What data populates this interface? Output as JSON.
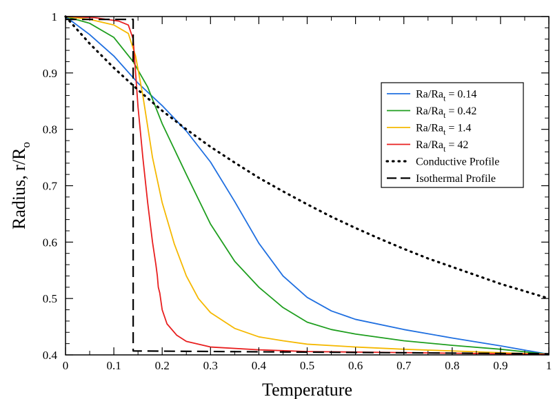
{
  "chart_data": {
    "type": "line",
    "xlabel": "Temperature",
    "ylabel": "Radius, r/R",
    "ylabel_sub": "o",
    "xlim": [
      0,
      1
    ],
    "ylim": [
      0.4,
      1
    ],
    "x_ticks": [
      "0",
      "0.1",
      "0.2",
      "0.3",
      "0.4",
      "0.5",
      "0.6",
      "0.7",
      "0.8",
      "0.9",
      "1"
    ],
    "y_ticks": [
      "0.4",
      "0.5",
      "0.6",
      "0.7",
      "0.8",
      "0.9",
      "1"
    ],
    "grid": false,
    "legend_position": "top-right",
    "series": [
      {
        "name": "Ra/Ra",
        "name_sub": "t",
        "name_suffix": " = 0.14",
        "color": "#1f6fe0",
        "dash": "solid",
        "points": [
          [
            0,
            1
          ],
          [
            0.05,
            0.968
          ],
          [
            0.1,
            0.93
          ],
          [
            0.15,
            0.882
          ],
          [
            0.2,
            0.842
          ],
          [
            0.25,
            0.797
          ],
          [
            0.3,
            0.742
          ],
          [
            0.35,
            0.672
          ],
          [
            0.4,
            0.598
          ],
          [
            0.45,
            0.54
          ],
          [
            0.5,
            0.502
          ],
          [
            0.55,
            0.478
          ],
          [
            0.6,
            0.463
          ],
          [
            0.7,
            0.445
          ],
          [
            0.8,
            0.43
          ],
          [
            0.9,
            0.416
          ],
          [
            1,
            0.401
          ]
        ]
      },
      {
        "name": "Ra/Ra",
        "name_sub": "t",
        "name_suffix": " = 0.42",
        "color": "#1e9e1e",
        "dash": "solid",
        "points": [
          [
            0,
            1
          ],
          [
            0.05,
            0.988
          ],
          [
            0.1,
            0.963
          ],
          [
            0.14,
            0.92
          ],
          [
            0.17,
            0.875
          ],
          [
            0.2,
            0.81
          ],
          [
            0.25,
            0.72
          ],
          [
            0.3,
            0.632
          ],
          [
            0.35,
            0.566
          ],
          [
            0.4,
            0.52
          ],
          [
            0.45,
            0.484
          ],
          [
            0.5,
            0.458
          ],
          [
            0.55,
            0.445
          ],
          [
            0.6,
            0.437
          ],
          [
            0.7,
            0.425
          ],
          [
            0.8,
            0.417
          ],
          [
            0.9,
            0.41
          ],
          [
            1,
            0.401
          ]
        ]
      },
      {
        "name": "Ra/Ra",
        "name_sub": "t",
        "name_suffix": " = 1.4",
        "color": "#f5b800",
        "dash": "solid",
        "points": [
          [
            0,
            1
          ],
          [
            0.05,
            0.995
          ],
          [
            0.1,
            0.985
          ],
          [
            0.13,
            0.97
          ],
          [
            0.145,
            0.93
          ],
          [
            0.16,
            0.86
          ],
          [
            0.18,
            0.75
          ],
          [
            0.2,
            0.67
          ],
          [
            0.225,
            0.597
          ],
          [
            0.25,
            0.54
          ],
          [
            0.275,
            0.5
          ],
          [
            0.3,
            0.475
          ],
          [
            0.35,
            0.447
          ],
          [
            0.4,
            0.432
          ],
          [
            0.45,
            0.425
          ],
          [
            0.5,
            0.419
          ],
          [
            0.6,
            0.414
          ],
          [
            0.7,
            0.41
          ],
          [
            0.8,
            0.407
          ],
          [
            0.9,
            0.404
          ],
          [
            1,
            0.401
          ]
        ]
      },
      {
        "name": "Ra/Ra",
        "name_sub": "t",
        "name_suffix": " = 42",
        "color": "#e81e1e",
        "dash": "solid",
        "points": [
          [
            0,
            1
          ],
          [
            0.06,
            0.998
          ],
          [
            0.11,
            0.992
          ],
          [
            0.13,
            0.985
          ],
          [
            0.14,
            0.96
          ],
          [
            0.145,
            0.9
          ],
          [
            0.15,
            0.84
          ],
          [
            0.16,
            0.75
          ],
          [
            0.17,
            0.67
          ],
          [
            0.18,
            0.6
          ],
          [
            0.187,
            0.56
          ],
          [
            0.19,
            0.54
          ],
          [
            0.192,
            0.52
          ],
          [
            0.195,
            0.51
          ],
          [
            0.2,
            0.48
          ],
          [
            0.21,
            0.455
          ],
          [
            0.23,
            0.435
          ],
          [
            0.25,
            0.424
          ],
          [
            0.3,
            0.414
          ],
          [
            0.4,
            0.409
          ],
          [
            0.5,
            0.406
          ],
          [
            0.6,
            0.405
          ],
          [
            0.8,
            0.403
          ],
          [
            1,
            0.401
          ]
        ]
      },
      {
        "name": "Conductive Profile",
        "color": "#000000",
        "dash": "dotted",
        "points": [
          [
            0,
            1
          ],
          [
            0.05,
            0.952
          ],
          [
            0.1,
            0.909
          ],
          [
            0.15,
            0.87
          ],
          [
            0.2,
            0.833
          ],
          [
            0.25,
            0.8
          ],
          [
            0.3,
            0.769
          ],
          [
            0.35,
            0.741
          ],
          [
            0.4,
            0.714
          ],
          [
            0.45,
            0.69
          ],
          [
            0.5,
            0.667
          ],
          [
            0.55,
            0.645
          ],
          [
            0.6,
            0.625
          ],
          [
            0.65,
            0.606
          ],
          [
            0.7,
            0.588
          ],
          [
            0.75,
            0.571
          ],
          [
            0.8,
            0.556
          ],
          [
            0.85,
            0.541
          ],
          [
            0.9,
            0.526
          ],
          [
            0.95,
            0.513
          ],
          [
            1,
            0.5
          ]
        ]
      },
      {
        "name": "Isothermal Profile",
        "color": "#000000",
        "dash": "dashed",
        "points": [
          [
            0,
            0.995
          ],
          [
            0.14,
            0.995
          ],
          [
            0.14,
            0.407
          ],
          [
            1,
            0.402
          ]
        ]
      }
    ]
  }
}
